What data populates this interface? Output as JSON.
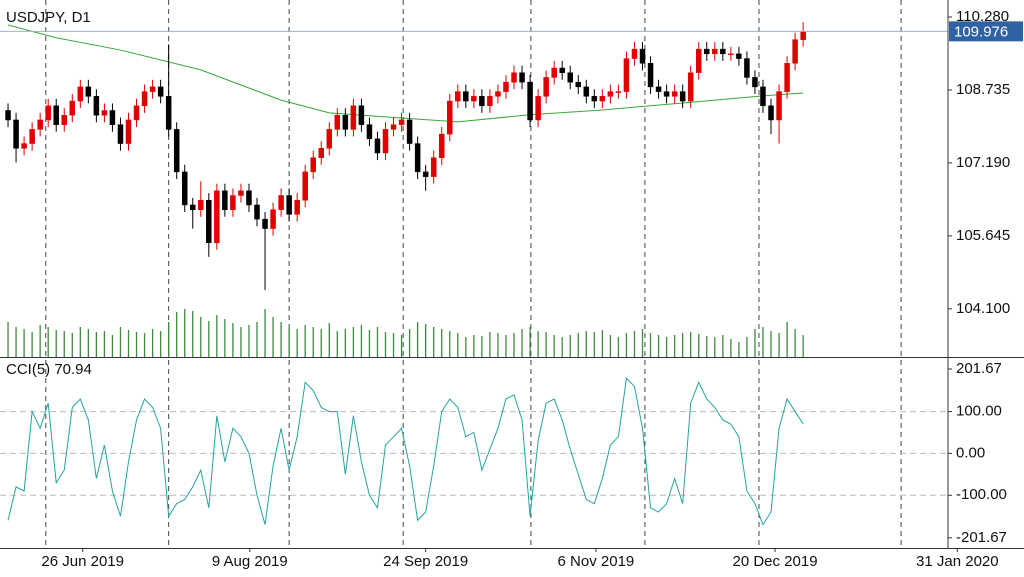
{
  "chart_data": [
    {
      "type": "candlestick",
      "title": "USDJPY, D1",
      "xlim": [
        -1,
        126.5
      ],
      "ylim": [
        103.08,
        110.64
      ],
      "yticks": [
        {
          "value": 110.28,
          "label": "110.280"
        },
        108.735,
        {
          "value": 107.19,
          "label": "107.190"
        },
        105.645,
        {
          "value": 104.1,
          "label": "104.100"
        }
      ],
      "separators": [
        4.7,
        20,
        35,
        49.2,
        65.1,
        79.3,
        93.5,
        111.2
      ],
      "up_color": "#e00000",
      "down_color": "#000000",
      "price_line_color": "#9fb4cf",
      "price_box_color": "#2f62a3",
      "open": [
        108.3,
        108.1,
        107.5,
        107.6,
        107.9,
        108.1,
        108.4,
        108.0,
        108.2,
        108.5,
        108.8,
        108.6,
        108.2,
        108.3,
        108.0,
        107.6,
        108.1,
        108.4,
        108.7,
        108.8,
        108.6,
        107.9,
        107.0,
        106.3,
        106.2,
        106.4,
        105.5,
        106.6,
        106.2,
        106.5,
        106.6,
        106.3,
        106.0,
        105.8,
        106.2,
        106.5,
        106.1,
        106.4,
        107.0,
        107.3,
        107.5,
        107.9,
        108.2,
        107.9,
        108.4,
        108.0,
        107.7,
        107.4,
        107.9,
        108.0,
        108.1,
        107.6,
        107.0,
        106.9,
        107.3,
        107.8,
        108.5,
        108.7,
        108.5,
        108.6,
        108.4,
        108.6,
        108.7,
        108.9,
        109.1,
        108.9,
        108.1,
        108.6,
        109.0,
        109.2,
        109.1,
        108.9,
        108.8,
        108.6,
        108.5,
        108.6,
        108.7,
        108.7,
        109.4,
        109.6,
        109.3,
        108.8,
        108.7,
        108.6,
        108.7,
        108.5,
        109.1,
        109.6,
        109.5,
        109.6,
        109.5,
        109.5,
        109.4,
        109.0,
        108.8,
        108.4,
        108.1,
        108.7,
        109.3,
        109.8
      ],
      "high": [
        108.45,
        108.25,
        107.75,
        108.05,
        108.25,
        108.55,
        108.55,
        108.35,
        108.65,
        108.95,
        108.95,
        108.75,
        108.45,
        108.45,
        108.15,
        108.25,
        108.55,
        108.85,
        108.95,
        108.95,
        109.7,
        108.05,
        107.15,
        106.45,
        106.8,
        106.55,
        106.75,
        106.75,
        106.65,
        106.75,
        106.75,
        106.45,
        106.15,
        106.35,
        106.65,
        106.65,
        106.55,
        107.15,
        107.45,
        107.65,
        108.05,
        108.35,
        108.35,
        108.55,
        108.55,
        108.15,
        107.85,
        108.05,
        108.15,
        108.25,
        108.25,
        107.75,
        107.15,
        107.45,
        107.95,
        108.65,
        108.85,
        108.85,
        108.75,
        108.75,
        108.75,
        108.85,
        109.05,
        109.25,
        109.25,
        109.05,
        108.75,
        109.15,
        109.35,
        109.35,
        109.25,
        109.05,
        108.95,
        108.75,
        108.75,
        108.85,
        108.85,
        109.55,
        109.75,
        109.75,
        109.45,
        108.95,
        108.85,
        108.85,
        108.85,
        109.25,
        109.75,
        109.75,
        109.75,
        109.75,
        109.65,
        109.65,
        109.55,
        109.15,
        108.95,
        108.55,
        108.85,
        109.45,
        109.95,
        110.17
      ],
      "low": [
        107.95,
        107.2,
        107.35,
        107.45,
        107.75,
        107.95,
        107.85,
        107.85,
        108.05,
        108.35,
        108.45,
        108.05,
        108.05,
        107.85,
        107.45,
        107.45,
        107.95,
        108.25,
        108.55,
        108.45,
        107.75,
        106.85,
        106.15,
        105.8,
        106.05,
        105.2,
        105.35,
        106.05,
        106.05,
        106.35,
        106.15,
        105.85,
        104.5,
        105.65,
        106.05,
        105.95,
        105.95,
        106.25,
        106.85,
        107.15,
        107.35,
        107.75,
        107.75,
        107.75,
        107.85,
        107.55,
        107.25,
        107.25,
        107.75,
        107.85,
        107.45,
        106.85,
        106.6,
        106.75,
        107.15,
        107.65,
        108.35,
        108.35,
        108.35,
        108.25,
        108.25,
        108.45,
        108.55,
        108.75,
        108.75,
        107.95,
        107.95,
        108.45,
        108.85,
        108.95,
        108.75,
        108.65,
        108.45,
        108.35,
        108.35,
        108.45,
        108.55,
        108.55,
        109.25,
        109.15,
        108.65,
        108.55,
        108.45,
        108.45,
        108.35,
        108.35,
        108.95,
        109.35,
        109.35,
        109.35,
        109.35,
        109.25,
        108.85,
        108.65,
        108.25,
        107.8,
        107.6,
        108.55,
        109.15,
        109.65
      ],
      "close": [
        108.1,
        107.5,
        107.6,
        107.9,
        108.1,
        108.4,
        108.0,
        108.2,
        108.5,
        108.8,
        108.6,
        108.2,
        108.3,
        108.0,
        107.6,
        108.1,
        108.4,
        108.7,
        108.8,
        108.6,
        107.9,
        107.0,
        106.3,
        106.2,
        106.4,
        105.5,
        106.6,
        106.2,
        106.5,
        106.6,
        106.3,
        106.0,
        105.8,
        106.2,
        106.5,
        106.1,
        106.4,
        107.0,
        107.3,
        107.5,
        107.9,
        108.2,
        107.9,
        108.4,
        108.0,
        107.7,
        107.4,
        107.9,
        108.0,
        108.1,
        107.6,
        107.0,
        106.9,
        107.3,
        107.8,
        108.5,
        108.7,
        108.5,
        108.6,
        108.4,
        108.6,
        108.7,
        108.9,
        109.1,
        108.9,
        108.1,
        108.6,
        109.0,
        109.2,
        109.1,
        108.9,
        108.8,
        108.6,
        108.5,
        108.6,
        108.7,
        108.7,
        109.4,
        109.6,
        109.3,
        108.8,
        108.7,
        108.6,
        108.7,
        108.5,
        109.1,
        109.6,
        109.5,
        109.6,
        109.5,
        109.5,
        109.4,
        109.0,
        108.8,
        108.4,
        108.1,
        108.7,
        109.3,
        109.8,
        109.976
      ],
      "ma": {
        "color": "#3aa83a",
        "x": [
          0,
          6,
          14,
          24,
          34,
          40,
          49,
          56,
          65,
          74,
          84,
          94,
          99
        ],
        "values": [
          110.11,
          109.84,
          109.58,
          109.16,
          108.52,
          108.25,
          108.14,
          108.06,
          108.21,
          108.31,
          108.46,
          108.61,
          108.67
        ]
      },
      "volume": {
        "color": "#3d8b3d",
        "ylim": [
          0,
          110
        ],
        "values": [
          35,
          30,
          28,
          25,
          32,
          30,
          27,
          26,
          24,
          30,
          28,
          25,
          26,
          22,
          30,
          27,
          25,
          24,
          28,
          26,
          35,
          45,
          48,
          46,
          40,
          36,
          42,
          38,
          34,
          30,
          32,
          35,
          48,
          40,
          35,
          30,
          28,
          32,
          30,
          28,
          34,
          26,
          28,
          30,
          32,
          27,
          30,
          25,
          24,
          22,
          28,
          35,
          33,
          30,
          28,
          26,
          24,
          20,
          22,
          21,
          25,
          24,
          22,
          24,
          28,
          30,
          26,
          25,
          22,
          20,
          22,
          24,
          26,
          25,
          27,
          22,
          20,
          24,
          26,
          28,
          24,
          22,
          20,
          22,
          24,
          25,
          23,
          21,
          20,
          22,
          18,
          15,
          20,
          28,
          30,
          26,
          24,
          35,
          28,
          22
        ]
      }
    },
    {
      "type": "line",
      "title": "CCI(5) 70.94",
      "color": "#24a3a0",
      "xlim": [
        -1,
        126.5
      ],
      "ylim": [
        -226,
        228
      ],
      "xticks": [
        {
          "value": 9.3,
          "label": "26 Jun 2019"
        },
        {
          "value": 30.1,
          "label": "9 Aug 2019"
        },
        {
          "value": 52,
          "label": "24 Sep 2019"
        },
        {
          "value": 73.2,
          "label": "6 Nov 2019"
        },
        {
          "value": 95.5,
          "label": "20 Dec 2019"
        },
        {
          "value": 118.2,
          "label": "31 Jan 2020"
        }
      ],
      "yticks": [
        201.67,
        {
          "value": 100,
          "label": "100.00"
        },
        {
          "value": 0,
          "label": "0.00"
        },
        {
          "value": -100,
          "label": "-100.00"
        },
        -201.67
      ],
      "values": [
        -160,
        -80,
        -90,
        100,
        60,
        120,
        -70,
        -40,
        110,
        130,
        80,
        -60,
        20,
        -90,
        -150,
        -20,
        80,
        130,
        110,
        60,
        -150,
        -120,
        -110,
        -80,
        -40,
        -130,
        90,
        -20,
        60,
        40,
        0,
        -100,
        -170,
        -30,
        60,
        -40,
        40,
        170,
        150,
        110,
        100,
        100,
        -50,
        90,
        -20,
        -100,
        -130,
        20,
        40,
        60,
        -30,
        -160,
        -140,
        -30,
        100,
        130,
        110,
        40,
        50,
        -40,
        10,
        60,
        130,
        140,
        80,
        -150,
        30,
        120,
        130,
        80,
        10,
        -50,
        -110,
        -120,
        -60,
        20,
        40,
        180,
        160,
        60,
        -130,
        -140,
        -120,
        -60,
        -120,
        120,
        170,
        130,
        110,
        80,
        70,
        40,
        -90,
        -120,
        -170,
        -140,
        60,
        130,
        100,
        70.94
      ]
    }
  ]
}
